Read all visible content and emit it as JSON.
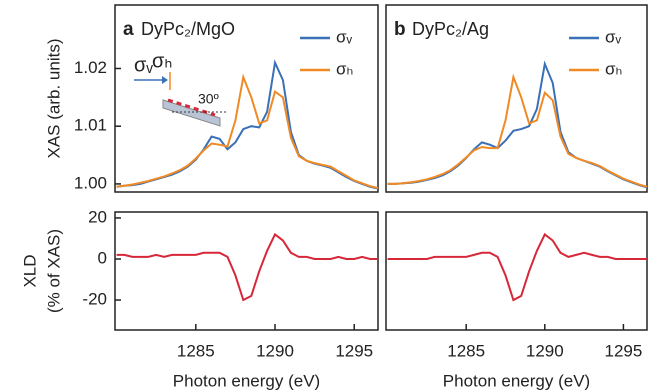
{
  "chart_data": [
    {
      "type": "line",
      "panel": "a",
      "title": "DyPc₂/MgO",
      "ylabel": [
        "XAS (arb. units)"
      ],
      "x": [
        1280,
        1280.5,
        1281,
        1281.5,
        1282,
        1282.5,
        1283,
        1283.5,
        1284,
        1284.5,
        1285,
        1285.5,
        1286,
        1286.5,
        1287,
        1287.5,
        1288,
        1288.5,
        1289,
        1289.5,
        1290,
        1290.5,
        1291,
        1291.5,
        1292,
        1292.5,
        1293,
        1293.5,
        1294,
        1294.5,
        1295,
        1295.5,
        1296,
        1296.5
      ],
      "xlim": [
        1279.9,
        1296.5
      ],
      "ylim": [
        0.9986,
        1.031
      ],
      "yticks": [
        {
          "value": 1.0,
          "label": "1.00"
        },
        1.01,
        1.02
      ],
      "series": [
        {
          "name": "σᵥ",
          "color": "#3a70b8",
          "values": [
            0.9995,
            0.9997,
            0.9998,
            1.0,
            1.0004,
            1.0008,
            1.0012,
            1.0016,
            1.0022,
            1.003,
            1.0042,
            1.006,
            1.0082,
            1.0078,
            1.006,
            1.0072,
            1.0095,
            1.01,
            1.0098,
            1.0125,
            1.021,
            1.018,
            1.009,
            1.005,
            1.004,
            1.0035,
            1.0032,
            1.0028,
            1.002,
            1.0012,
            1.0005,
            1.0,
            0.9995,
            0.9992
          ]
        },
        {
          "name": "σₕ",
          "color": "#f08a24",
          "values": [
            0.9995,
            0.9997,
            0.9999,
            1.0002,
            1.0005,
            1.0009,
            1.0013,
            1.0018,
            1.0024,
            1.0032,
            1.0044,
            1.0058,
            1.007,
            1.0068,
            1.0065,
            1.011,
            1.0185,
            1.015,
            1.0105,
            1.011,
            1.016,
            1.015,
            1.008,
            1.0048,
            1.004,
            1.0036,
            1.0033,
            1.003,
            1.0022,
            1.0014,
            1.0006,
            1.0001,
            0.9996,
            0.9993
          ]
        }
      ],
      "inset": {
        "labels": [
          "σᵥ",
          "σₕ"
        ],
        "angle": "30º"
      }
    },
    {
      "type": "line",
      "panel": "b",
      "title": "DyPc₂/Ag",
      "x": [
        1280,
        1280.5,
        1281,
        1281.5,
        1282,
        1282.5,
        1283,
        1283.5,
        1284,
        1284.5,
        1285,
        1285.5,
        1286,
        1286.5,
        1287,
        1287.5,
        1288,
        1288.5,
        1289,
        1289.5,
        1290,
        1290.5,
        1291,
        1291.5,
        1292,
        1292.5,
        1293,
        1293.5,
        1294,
        1294.5,
        1295,
        1295.5,
        1296,
        1296.5
      ],
      "xlim": [
        1279.9,
        1296.5
      ],
      "ylim": [
        0.9986,
        1.031
      ],
      "series": [
        {
          "name": "σᵥ",
          "color": "#3a70b8",
          "values": [
            1.0,
            1.0,
            1.0001,
            1.0002,
            1.0004,
            1.0007,
            1.001,
            1.0015,
            1.0022,
            1.0032,
            1.0045,
            1.006,
            1.0072,
            1.0068,
            1.0062,
            1.0075,
            1.0092,
            1.0095,
            1.01,
            1.013,
            1.0208,
            1.0175,
            1.009,
            1.0055,
            1.0045,
            1.004,
            1.0035,
            1.003,
            1.0022,
            1.0015,
            1.0008,
            1.0003,
            0.9998,
            0.9994
          ]
        },
        {
          "name": "σₕ",
          "color": "#f08a24",
          "values": [
            1.0,
            1.0,
            1.0001,
            1.0003,
            1.0005,
            1.0008,
            1.0012,
            1.0017,
            1.0024,
            1.0034,
            1.0046,
            1.0058,
            1.0064,
            1.0062,
            1.0062,
            1.011,
            1.0185,
            1.015,
            1.0105,
            1.011,
            1.0158,
            1.0145,
            1.0082,
            1.0052,
            1.0045,
            1.004,
            1.0036,
            1.0031,
            1.0023,
            1.0016,
            1.0009,
            1.0004,
            0.9999,
            0.9995
          ]
        }
      ]
    },
    {
      "type": "line",
      "ylabel": [
        "XLD",
        "(% of XAS)"
      ],
      "xlabel": "Photon energy (eV)",
      "x": [
        1280,
        1280.5,
        1281,
        1281.5,
        1282,
        1282.5,
        1283,
        1283.5,
        1284,
        1284.5,
        1285,
        1285.5,
        1286,
        1286.5,
        1287,
        1287.5,
        1288,
        1288.5,
        1289,
        1289.5,
        1290,
        1290.5,
        1291,
        1291.5,
        1292,
        1292.5,
        1293,
        1293.5,
        1294,
        1294.5,
        1295,
        1295.5,
        1296,
        1296.5
      ],
      "xlim": [
        1279.9,
        1296.5
      ],
      "ylim": [
        -34.6,
        22.9
      ],
      "xticks": [
        1285,
        1290,
        1295
      ],
      "yticks": [
        -20,
        0,
        20
      ],
      "series": [
        {
          "color": "#d62839",
          "values": [
            2,
            2,
            1,
            1,
            1,
            2,
            1,
            2,
            2,
            2,
            2,
            3,
            3,
            3,
            1,
            -8,
            -20,
            -18,
            -6,
            4,
            12,
            9,
            3,
            1,
            1,
            0,
            0,
            0,
            1,
            0,
            0,
            1,
            0,
            0
          ]
        }
      ]
    },
    {
      "type": "line",
      "xlabel": "Photon energy (eV)",
      "x": [
        1280,
        1280.5,
        1281,
        1281.5,
        1282,
        1282.5,
        1283,
        1283.5,
        1284,
        1284.5,
        1285,
        1285.5,
        1286,
        1286.5,
        1287,
        1287.5,
        1288,
        1288.5,
        1289,
        1289.5,
        1290,
        1290.5,
        1291,
        1291.5,
        1292,
        1292.5,
        1293,
        1293.5,
        1294,
        1294.5,
        1295,
        1295.5,
        1296,
        1296.5
      ],
      "xlim": [
        1279.9,
        1296.5
      ],
      "ylim": [
        -34.6,
        22.9
      ],
      "xticks": [
        1285,
        1290,
        1295
      ],
      "series": [
        {
          "color": "#d62839",
          "values": [
            0,
            0,
            0,
            0,
            0,
            0,
            1,
            1,
            1,
            1,
            1,
            2,
            3,
            3,
            1,
            -8,
            -20,
            -18,
            -6,
            4,
            12,
            9,
            3,
            1,
            2,
            3,
            2,
            1,
            1,
            0,
            0,
            0,
            0,
            0
          ]
        }
      ]
    }
  ]
}
